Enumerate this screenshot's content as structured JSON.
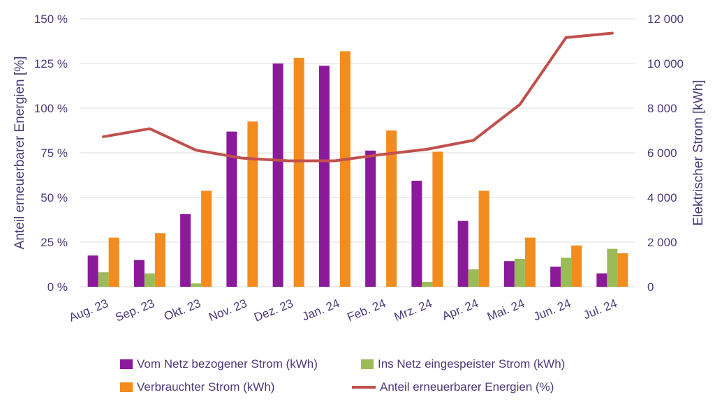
{
  "chart_data": {
    "type": "bar+line",
    "categories": [
      "Aug. 23",
      "Sep. 23",
      "Okt. 23",
      "Nov. 23",
      "Dez. 23",
      "Jan. 24",
      "Feb. 24",
      "Mrz. 24",
      "Apr. 24",
      "Mai. 24",
      "Jun. 24",
      "Jul. 24"
    ],
    "series": [
      {
        "name": "Vom Netz bezogener Strom (kWh)",
        "type": "bar",
        "axis": "right",
        "color": "#8b1a9a",
        "values": [
          1400,
          1200,
          3250,
          6950,
          10000,
          9900,
          6100,
          4750,
          2950,
          1150,
          900,
          600
        ]
      },
      {
        "name": "Ins Netz eingespeister Strom (kWh)",
        "type": "bar",
        "axis": "right",
        "color": "#9bbb59",
        "values": [
          650,
          600,
          150,
          0,
          0,
          0,
          0,
          220,
          780,
          1250,
          1300,
          1700
        ]
      },
      {
        "name": "Verbrauchter Strom (kWh)",
        "type": "bar",
        "axis": "right",
        "color": "#f28c1f",
        "values": [
          2200,
          2400,
          4300,
          7400,
          10250,
          10550,
          7000,
          6050,
          4300,
          2200,
          1850,
          1500
        ]
      },
      {
        "name": "Anteil erneuerbarer Energien (%)",
        "type": "line",
        "axis": "left",
        "color": "#c0504d",
        "values": [
          84,
          88.5,
          76.5,
          72,
          70.5,
          70.5,
          74,
          77,
          82,
          102,
          139.5,
          142
        ]
      }
    ],
    "y_left": {
      "label": "Anteil erneuerbarer Energien [%]",
      "range": [
        0,
        150
      ],
      "ticks": [
        "0 %",
        "25 %",
        "50 %",
        "75 %",
        "100 %",
        "125 %",
        "150 %"
      ]
    },
    "y_right": {
      "label": "Elektrischer Strom [kWh]",
      "range": [
        0,
        12000
      ],
      "ticks": [
        "0",
        "2 000",
        "4 000",
        "6 000",
        "8 000",
        "10 000",
        "12 000"
      ]
    },
    "grid": true,
    "legend_position": "bottom"
  }
}
